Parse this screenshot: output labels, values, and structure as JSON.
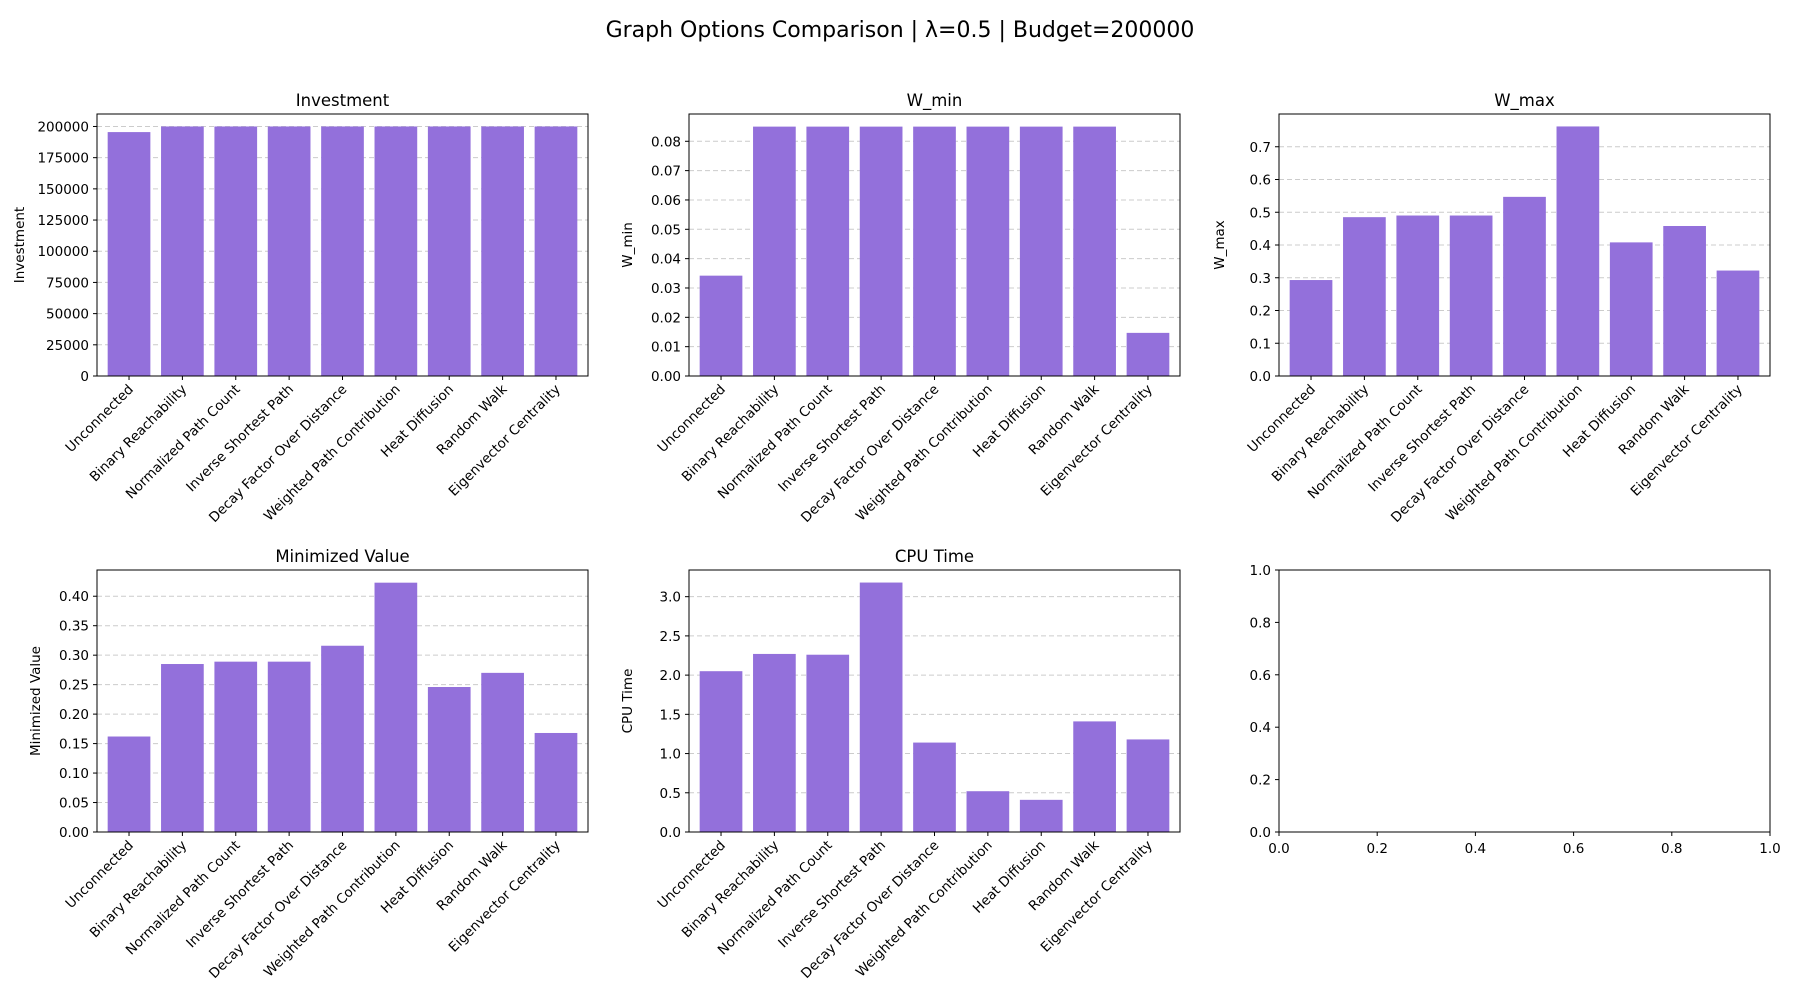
{
  "figure": {
    "title": "Graph Options Comparison | λ=0.5 | Budget=200000",
    "bar_color": "#9370DB"
  },
  "chart_data": [
    {
      "type": "bar",
      "title": "Investment",
      "ylabel": "Investment",
      "categories": [
        "Unconnected",
        "Binary Reachability",
        "Normalized Path Count",
        "Inverse Shortest Path",
        "Decay Factor Over Distance",
        "Weighted Path Contribution",
        "Heat Diffusion",
        "Random Walk",
        "Eigenvector Centrality"
      ],
      "values": [
        195500,
        200000,
        200000,
        200000,
        200000,
        200000,
        200000,
        200000,
        200000
      ],
      "yticks": [
        0,
        25000,
        50000,
        75000,
        100000,
        125000,
        150000,
        175000,
        200000
      ],
      "ylim": [
        0,
        210000
      ],
      "grid": true
    },
    {
      "type": "bar",
      "title": "W_min",
      "ylabel": "W_min",
      "categories": [
        "Unconnected",
        "Binary Reachability",
        "Normalized Path Count",
        "Inverse Shortest Path",
        "Decay Factor Over Distance",
        "Weighted Path Contribution",
        "Heat Diffusion",
        "Random Walk",
        "Eigenvector Centrality"
      ],
      "values": [
        0.0342,
        0.085,
        0.085,
        0.085,
        0.085,
        0.085,
        0.085,
        0.085,
        0.0147
      ],
      "yticks": [
        "0.00",
        "0.01",
        "0.02",
        "0.03",
        "0.04",
        "0.05",
        "0.06",
        "0.07",
        "0.08"
      ],
      "ylim": [
        0,
        0.0893
      ],
      "grid": true
    },
    {
      "type": "bar",
      "title": "W_max",
      "ylabel": "W_max",
      "categories": [
        "Unconnected",
        "Binary Reachability",
        "Normalized Path Count",
        "Inverse Shortest Path",
        "Decay Factor Over Distance",
        "Weighted Path Contribution",
        "Heat Diffusion",
        "Random Walk",
        "Eigenvector Centrality"
      ],
      "values": [
        0.293,
        0.485,
        0.49,
        0.49,
        0.547,
        0.762,
        0.408,
        0.458,
        0.322
      ],
      "yticks": [
        "0.0",
        "0.1",
        "0.2",
        "0.3",
        "0.4",
        "0.5",
        "0.6",
        "0.7"
      ],
      "ylim": [
        0,
        0.8
      ],
      "grid": true
    },
    {
      "type": "bar",
      "title": "Minimized Value",
      "ylabel": "Minimized Value",
      "categories": [
        "Unconnected",
        "Binary Reachability",
        "Normalized Path Count",
        "Inverse Shortest Path",
        "Decay Factor Over Distance",
        "Weighted Path Contribution",
        "Heat Diffusion",
        "Random Walk",
        "Eigenvector Centrality"
      ],
      "values": [
        0.162,
        0.285,
        0.289,
        0.289,
        0.316,
        0.423,
        0.246,
        0.27,
        0.168
      ],
      "yticks": [
        "0.00",
        "0.05",
        "0.10",
        "0.15",
        "0.20",
        "0.25",
        "0.30",
        "0.35",
        "0.40"
      ],
      "ylim": [
        0,
        0.4445
      ],
      "grid": true
    },
    {
      "type": "bar",
      "title": "CPU Time",
      "ylabel": "CPU Time",
      "categories": [
        "Unconnected",
        "Binary Reachability",
        "Normalized Path Count",
        "Inverse Shortest Path",
        "Decay Factor Over Distance",
        "Weighted Path Contribution",
        "Heat Diffusion",
        "Random Walk",
        "Eigenvector Centrality"
      ],
      "values": [
        2.05,
        2.27,
        2.26,
        3.18,
        1.14,
        0.52,
        0.41,
        1.41,
        1.18
      ],
      "yticks": [
        "0.0",
        "0.5",
        "1.0",
        "1.5",
        "2.0",
        "2.5",
        "3.0"
      ],
      "ylim": [
        0,
        3.34
      ],
      "grid": true
    },
    {
      "type": "empty",
      "xticks": [
        "0.0",
        "0.2",
        "0.4",
        "0.6",
        "0.8",
        "1.0"
      ],
      "yticks": [
        "0.0",
        "0.2",
        "0.4",
        "0.6",
        "0.8",
        "1.0"
      ],
      "xlim": [
        0,
        1
      ],
      "ylim": [
        0,
        1
      ],
      "grid": false
    }
  ]
}
